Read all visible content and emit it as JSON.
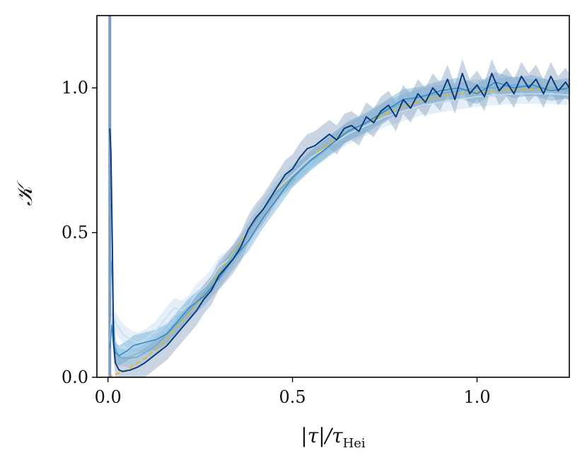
{
  "chart_data": {
    "type": "line",
    "xlabel_parts": {
      "base": "|τ|/τ",
      "sub": "Hei"
    },
    "ylabel": "𝒦",
    "xlim": [
      -0.03,
      1.25
    ],
    "ylim": [
      0,
      1.25
    ],
    "x_ticks": [
      {
        "value": 0.0,
        "label": "0.0"
      },
      {
        "value": 0.5,
        "label": "0.5"
      },
      {
        "value": 1.0,
        "label": "1.0"
      }
    ],
    "y_ticks": [
      {
        "value": 0.0,
        "label": "0.0"
      },
      {
        "value": 0.5,
        "label": "0.5"
      },
      {
        "value": 1.0,
        "label": "1.0"
      }
    ],
    "reference_curve": {
      "color": "#f0b400",
      "style": "dashed",
      "x": [
        0.0,
        0.05,
        0.1,
        0.15,
        0.2,
        0.25,
        0.3,
        0.35,
        0.4,
        0.45,
        0.5,
        0.55,
        0.6,
        0.65,
        0.7,
        0.75,
        0.8,
        0.85,
        0.9,
        0.95,
        1.0,
        1.05,
        1.1,
        1.15,
        1.2,
        1.25
      ],
      "y": [
        0.0,
        0.025,
        0.065,
        0.12,
        0.19,
        0.27,
        0.36,
        0.45,
        0.54,
        0.63,
        0.7,
        0.76,
        0.81,
        0.85,
        0.88,
        0.91,
        0.935,
        0.955,
        0.97,
        0.98,
        0.985,
        0.99,
        0.993,
        0.995,
        0.997,
        0.998
      ]
    },
    "series": [
      {
        "color": "#c6dcef",
        "band_color": "#c6dcef",
        "band_width": 0.035,
        "x": [
          0.005,
          0.01,
          0.02,
          0.04,
          0.06,
          0.08,
          0.1,
          0.13,
          0.16,
          0.18,
          0.2,
          0.22,
          0.24,
          0.26,
          0.28,
          0.3,
          0.33,
          0.36,
          0.4,
          0.45,
          0.5,
          0.55,
          0.6,
          0.65,
          0.7,
          0.75,
          0.8,
          0.85,
          0.9,
          0.95,
          1.0,
          1.05,
          1.1,
          1.15,
          1.2,
          1.25
        ],
        "y": [
          0.12,
          0.22,
          0.19,
          0.15,
          0.13,
          0.12,
          0.13,
          0.16,
          0.21,
          0.24,
          0.23,
          0.25,
          0.29,
          0.31,
          0.34,
          0.38,
          0.41,
          0.46,
          0.55,
          0.64,
          0.7,
          0.76,
          0.8,
          0.84,
          0.87,
          0.9,
          0.92,
          0.94,
          0.95,
          0.96,
          0.97,
          0.975,
          0.98,
          0.98,
          0.98,
          0.975
        ]
      },
      {
        "color": "#6aaed6",
        "band_color": "#9ecae1",
        "band_width": 0.03,
        "x": [
          0.005,
          0.01,
          0.015,
          0.02,
          0.03,
          0.05,
          0.08,
          0.1,
          0.13,
          0.16,
          0.2,
          0.24,
          0.28,
          0.32,
          0.36,
          0.4,
          0.45,
          0.5,
          0.55,
          0.6,
          0.65,
          0.7,
          0.75,
          0.8,
          0.85,
          0.9,
          0.95,
          1.0,
          1.05,
          1.1,
          1.15,
          1.2,
          1.25
        ],
        "y": [
          0.3,
          0.4,
          0.2,
          0.1,
          0.07,
          0.065,
          0.07,
          0.085,
          0.11,
          0.15,
          0.2,
          0.26,
          0.32,
          0.39,
          0.46,
          0.54,
          0.63,
          0.69,
          0.75,
          0.8,
          0.85,
          0.88,
          0.92,
          0.95,
          0.97,
          0.98,
          0.99,
          1.0,
          1.0,
          1.01,
          1.0,
          1.0,
          0.99
        ]
      },
      {
        "color": "#3a8bc2",
        "band_color": "#6aaed6",
        "band_width": 0.035,
        "x": [
          0.005,
          0.01,
          0.015,
          0.02,
          0.03,
          0.05,
          0.07,
          0.1,
          0.13,
          0.16,
          0.18,
          0.2,
          0.22,
          0.24,
          0.26,
          0.28,
          0.3,
          0.34,
          0.38,
          0.42,
          0.46,
          0.5,
          0.55,
          0.6,
          0.65,
          0.7,
          0.75,
          0.8,
          0.85,
          0.9,
          0.95,
          1.0,
          1.05,
          1.1,
          1.15,
          1.2,
          1.25
        ],
        "y": [
          0.1,
          0.18,
          0.12,
          0.085,
          0.075,
          0.09,
          0.11,
          0.12,
          0.13,
          0.15,
          0.18,
          0.21,
          0.24,
          0.26,
          0.28,
          0.31,
          0.34,
          0.41,
          0.47,
          0.55,
          0.62,
          0.69,
          0.75,
          0.8,
          0.85,
          0.88,
          0.92,
          0.96,
          0.97,
          0.99,
          1.0,
          0.98,
          1.02,
          1.0,
          1.01,
          0.99,
          1.0
        ]
      },
      {
        "color": "#0b3b7a",
        "band_color": "#8aa1c1",
        "band_width": 0.05,
        "x": [
          0.005,
          0.008,
          0.012,
          0.015,
          0.02,
          0.03,
          0.04,
          0.06,
          0.08,
          0.1,
          0.12,
          0.14,
          0.16,
          0.18,
          0.2,
          0.22,
          0.24,
          0.26,
          0.28,
          0.3,
          0.32,
          0.34,
          0.36,
          0.38,
          0.4,
          0.42,
          0.44,
          0.46,
          0.48,
          0.5,
          0.52,
          0.54,
          0.56,
          0.58,
          0.6,
          0.62,
          0.64,
          0.66,
          0.68,
          0.7,
          0.72,
          0.74,
          0.76,
          0.78,
          0.8,
          0.82,
          0.84,
          0.86,
          0.88,
          0.9,
          0.92,
          0.94,
          0.96,
          0.98,
          1.0,
          1.02,
          1.04,
          1.06,
          1.08,
          1.1,
          1.12,
          1.14,
          1.16,
          1.18,
          1.2,
          1.22,
          1.24,
          1.25
        ],
        "y": [
          0.86,
          0.78,
          0.45,
          0.12,
          0.05,
          0.025,
          0.02,
          0.025,
          0.035,
          0.05,
          0.07,
          0.09,
          0.11,
          0.14,
          0.17,
          0.2,
          0.23,
          0.27,
          0.3,
          0.35,
          0.38,
          0.41,
          0.45,
          0.51,
          0.55,
          0.58,
          0.62,
          0.66,
          0.7,
          0.72,
          0.76,
          0.79,
          0.8,
          0.82,
          0.84,
          0.82,
          0.86,
          0.87,
          0.85,
          0.9,
          0.88,
          0.92,
          0.94,
          0.9,
          0.96,
          0.93,
          0.98,
          0.95,
          1.0,
          0.97,
          1.03,
          0.96,
          1.05,
          0.98,
          1.01,
          0.97,
          1.05,
          0.99,
          1.02,
          0.98,
          1.04,
          1.0,
          1.03,
          0.98,
          1.04,
          0.99,
          1.02,
          1.0
        ]
      }
    ],
    "spike": {
      "color": "#7a9cc8",
      "x": 0.005,
      "y_from": 0.0,
      "y_to": 1.25
    }
  }
}
